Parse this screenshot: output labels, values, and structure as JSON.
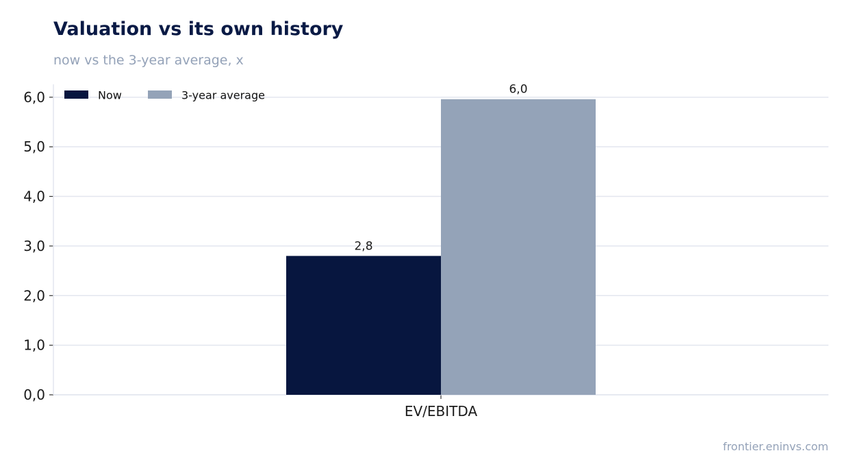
{
  "header": {
    "title": "Valuation vs its own history",
    "subtitle": "now vs the 3-year average, x"
  },
  "footer": {
    "source": "frontier.eninvs.com"
  },
  "colors": {
    "now": "#07163f",
    "average": "#94a3b8",
    "grid": "#e3e6ef",
    "axis": "#c9ccd6"
  },
  "chart_data": {
    "type": "bar",
    "categories": [
      "EV/EBITDA"
    ],
    "series": [
      {
        "name": "Now",
        "values": [
          2.8
        ],
        "value_labels": [
          "2,8"
        ]
      },
      {
        "name": "3-year average",
        "values": [
          5.96
        ],
        "value_labels": [
          "6,0"
        ]
      }
    ],
    "yticks": [
      {
        "value": 0,
        "label": "0,0"
      },
      {
        "value": 1,
        "label": "1,0"
      },
      {
        "value": 2,
        "label": "2,0"
      },
      {
        "value": 3,
        "label": "3,0"
      },
      {
        "value": 4,
        "label": "4,0"
      },
      {
        "value": 5,
        "label": "5,0"
      },
      {
        "value": 6,
        "label": "6,0"
      }
    ],
    "ylim": [
      0,
      6.26
    ],
    "grid": true,
    "legend_position": "top-left",
    "title": "Valuation vs its own history",
    "subtitle": "now vs the 3-year average, x"
  }
}
